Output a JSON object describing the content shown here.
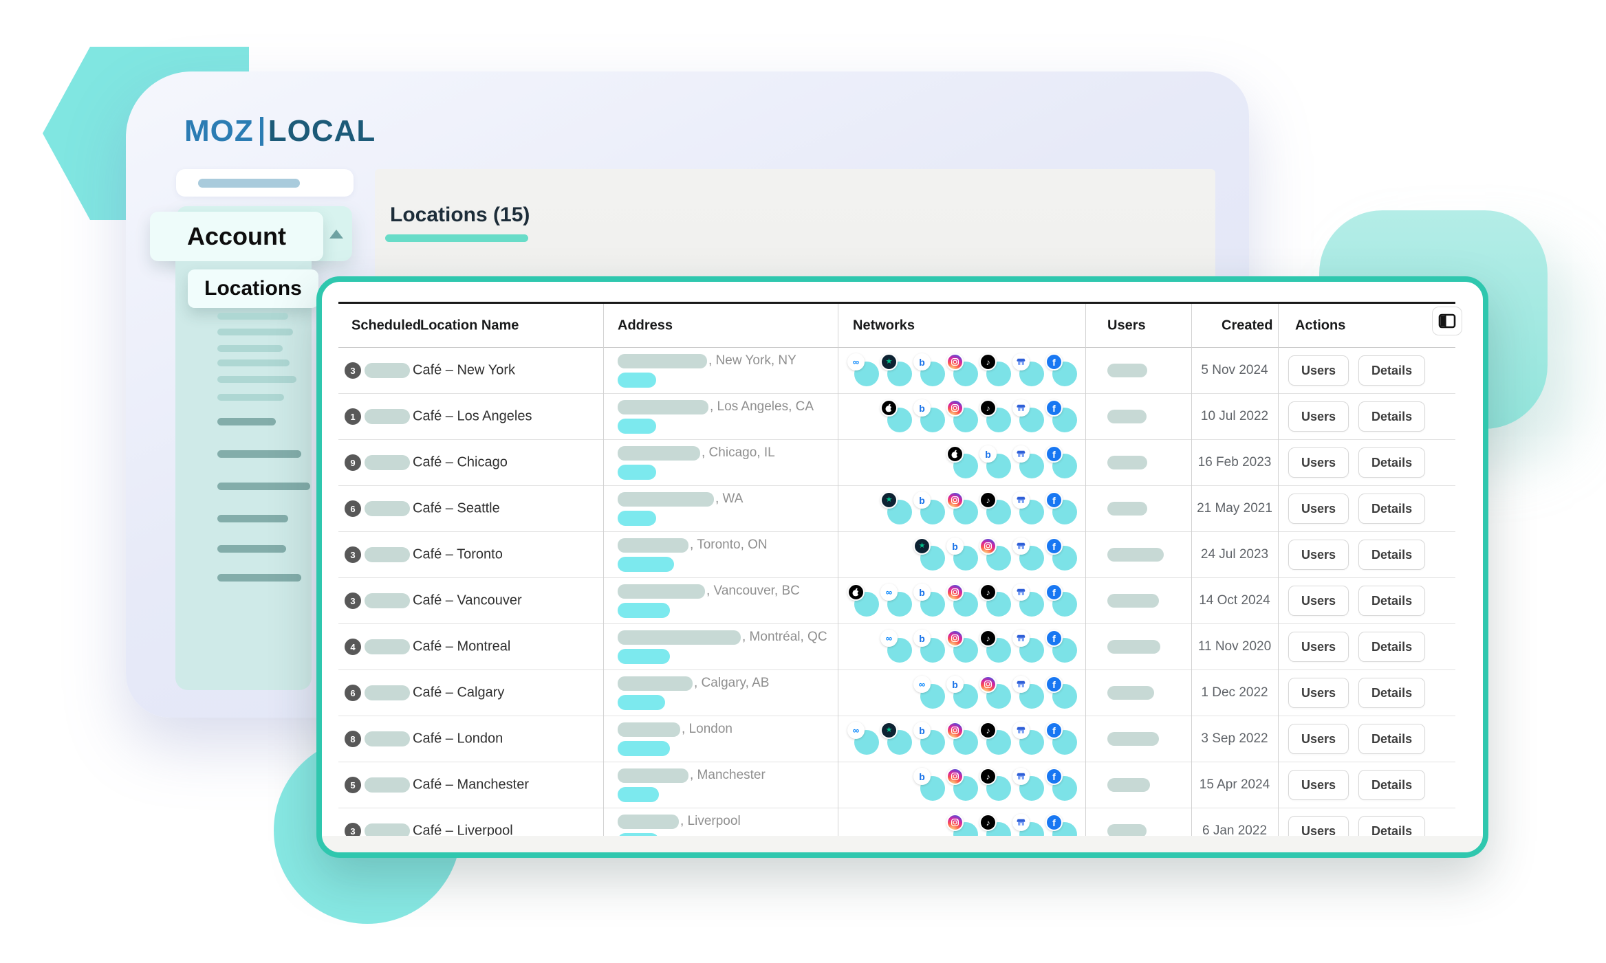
{
  "brand": {
    "logo_text": "MOZ",
    "logo_suffix": "LOCAL"
  },
  "sidebar": {
    "account_label": "Account",
    "locations_label": "Locations"
  },
  "main": {
    "title": "Locations (15)"
  },
  "table": {
    "headers": {
      "scheduled": "Scheduled",
      "location_name": "Location Name",
      "address": "Address",
      "networks": "Networks",
      "users": "Users",
      "created": "Created",
      "actions": "Actions"
    },
    "action_users": "Users",
    "action_details": "Details",
    "columns_toggle_icon": "columns-icon",
    "network_icon_names": [
      "meta",
      "trustpilot",
      "apple",
      "bing",
      "instagram",
      "tiktok",
      "google-business",
      "facebook"
    ],
    "rows": [
      {
        "scheduled": "3",
        "name": "Café – New York",
        "address_suffix": ", New York, NY",
        "created": "5 Nov 2024",
        "networks": [
          "meta",
          "trustpilot",
          "bing",
          "instagram",
          "tiktok",
          "google-business",
          "facebook"
        ],
        "skeleton": {
          "name_w": 66,
          "address_w": 130,
          "highlight_w": 56,
          "users_w": 58
        }
      },
      {
        "scheduled": "1",
        "name": "Café – Los Angeles",
        "address_suffix": ", Los Angeles, CA",
        "created": "10 Jul 2022",
        "networks": [
          "apple",
          "bing",
          "instagram",
          "tiktok",
          "google-business",
          "facebook"
        ],
        "skeleton": {
          "name_w": 66,
          "address_w": 132,
          "highlight_w": 56,
          "users_w": 57
        }
      },
      {
        "scheduled": "9",
        "name": "Café – Chicago",
        "address_suffix": ", Chicago, IL",
        "created": "16 Feb 2023",
        "networks": [
          "apple",
          "bing",
          "google-business",
          "facebook"
        ],
        "skeleton": {
          "name_w": 66,
          "address_w": 120,
          "highlight_w": 56,
          "users_w": 58
        }
      },
      {
        "scheduled": "6",
        "name": "Café – Seattle",
        "address_suffix": ", WA",
        "created": "21 May 2021",
        "networks": [
          "trustpilot",
          "bing",
          "instagram",
          "tiktok",
          "google-business",
          "facebook"
        ],
        "skeleton": {
          "name_w": 66,
          "address_w": 140,
          "highlight_w": 56,
          "users_w": 58
        }
      },
      {
        "scheduled": "3",
        "name": "Café – Toronto",
        "address_suffix": ", Toronto, ON",
        "created": "24 Jul 2023",
        "networks": [
          "trustpilot",
          "bing",
          "instagram",
          "google-business",
          "facebook"
        ],
        "skeleton": {
          "name_w": 66,
          "address_w": 103,
          "highlight_w": 82,
          "users_w": 82
        }
      },
      {
        "scheduled": "3",
        "name": "Café – Vancouver",
        "address_suffix": ", Vancouver, BC",
        "created": "14 Oct 2024",
        "networks": [
          "apple",
          "meta",
          "bing",
          "instagram",
          "tiktok",
          "google-business",
          "facebook"
        ],
        "skeleton": {
          "name_w": 66,
          "address_w": 127,
          "highlight_w": 76,
          "users_w": 75
        }
      },
      {
        "scheduled": "4",
        "name": "Café – Montreal",
        "address_suffix": ", Montréal, QC",
        "created": "11 Nov 2020",
        "networks": [
          "meta",
          "bing",
          "instagram",
          "tiktok",
          "google-business",
          "facebook"
        ],
        "skeleton": {
          "name_w": 66,
          "address_w": 179,
          "highlight_w": 76,
          "users_w": 77
        }
      },
      {
        "scheduled": "6",
        "name": "Café – Calgary",
        "address_suffix": ", Calgary, AB",
        "created": "1 Dec 2022",
        "networks": [
          "meta",
          "bing",
          "instagram",
          "google-business",
          "facebook"
        ],
        "skeleton": {
          "name_w": 66,
          "address_w": 109,
          "highlight_w": 69,
          "users_w": 68
        }
      },
      {
        "scheduled": "8",
        "name": "Café – London",
        "address_suffix": ", London",
        "created": "3 Sep 2022",
        "networks": [
          "meta",
          "trustpilot",
          "bing",
          "instagram",
          "tiktok",
          "google-business",
          "facebook"
        ],
        "skeleton": {
          "name_w": 66,
          "address_w": 91,
          "highlight_w": 76,
          "users_w": 75
        }
      },
      {
        "scheduled": "5",
        "name": "Café – Manchester",
        "address_suffix": ", Manchester",
        "created": "15 Apr 2024",
        "networks": [
          "bing",
          "instagram",
          "tiktok",
          "google-business",
          "facebook"
        ],
        "skeleton": {
          "name_w": 66,
          "address_w": 103,
          "highlight_w": 60,
          "users_w": 62
        }
      },
      {
        "scheduled": "3",
        "name": "Café – Liverpool",
        "address_suffix": ", Liverpool",
        "created": "6 Jan 2022",
        "networks": [
          "instagram",
          "tiktok",
          "google-business",
          "facebook"
        ],
        "skeleton": {
          "name_w": 66,
          "address_w": 89,
          "highlight_w": 60,
          "users_w": 57
        }
      }
    ]
  },
  "colors": {
    "accent_teal_border": "#2fc7ae",
    "decoration_teal": "#80e6e1",
    "highlight_teal": "#7ce9ee",
    "skeleton_gray": "#c7d9d5",
    "logo_blue": "#2b7cb3",
    "logo_dark_blue": "#1c5a78",
    "facebook_blue": "#1877f2",
    "bing_blue": "#1a73e8",
    "meta_blue": "#0082fb",
    "trustpilot_green": "#00c08b",
    "underline_teal": "#68dcc8"
  }
}
